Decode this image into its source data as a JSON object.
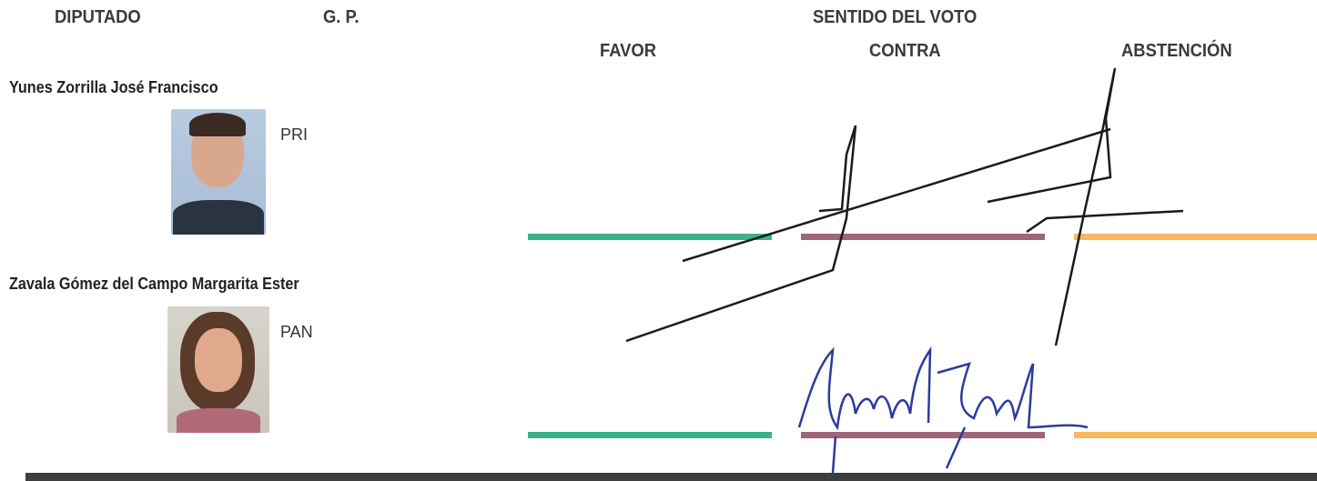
{
  "header": {
    "deputy": "DIPUTADO",
    "group": "G. P.",
    "vote": "SENTIDO DEL VOTO",
    "options": [
      "FAVOR",
      "CONTRA",
      "ABSTENCIÓN"
    ]
  },
  "rows": [
    {
      "name": "Yunes Zorrilla José Francisco",
      "party": "PRI"
    },
    {
      "name": "Zavala Gómez del Campo Margarita Ester",
      "party": "PAN"
    }
  ]
}
